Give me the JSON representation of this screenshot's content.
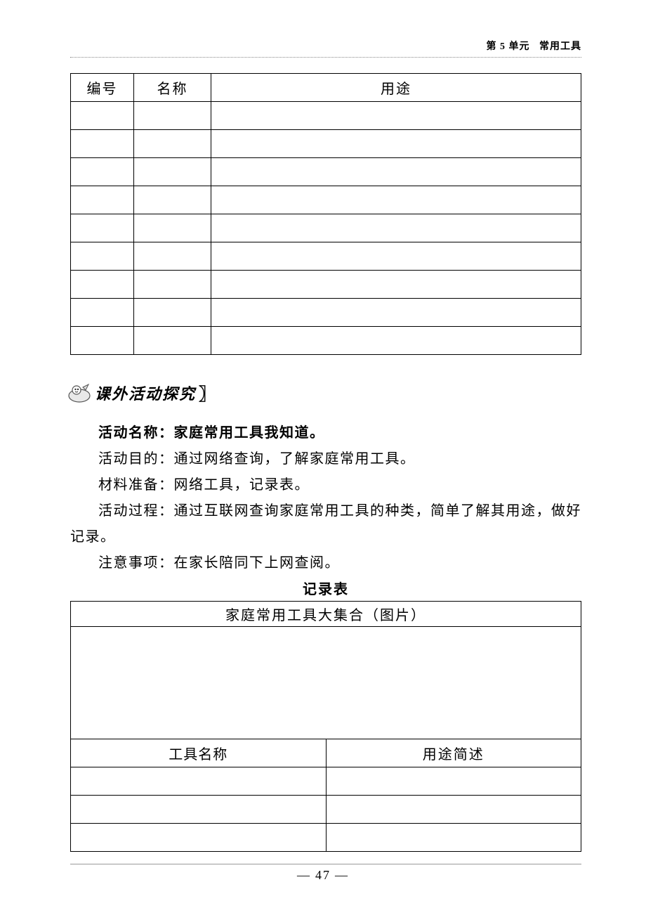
{
  "header": {
    "unit_label": "第 5 单元",
    "unit_title": "常用工具"
  },
  "table1": {
    "columns": [
      "编号",
      "名称",
      "用途"
    ],
    "row_count": 9
  },
  "section": {
    "heading": "课外活动探究",
    "paragraphs": [
      {
        "label": "活动名称",
        "text": "家庭常用工具我知道。",
        "bold_label": true,
        "bold_text": true
      },
      {
        "label": "活动目的",
        "text": "通过网络查询，了解家庭常用工具。",
        "bold_label": false
      },
      {
        "label": "材料准备",
        "text": "网络工具，记录表。",
        "bold_label": false
      },
      {
        "label": "活动过程",
        "text": "通过互联网查询家庭常用工具的种类，简单了解其用途，做好",
        "bold_label": false,
        "continuation": "记录。"
      },
      {
        "label": "注意事项",
        "text": "在家长陪同下上网查阅。",
        "bold_label": false
      }
    ]
  },
  "record_table": {
    "title": "记录表",
    "big_header": "家庭常用工具大集合（图片）",
    "sub_columns": [
      "工具名称",
      "用途简述"
    ],
    "empty_rows": 3
  },
  "footer": {
    "page": "47"
  },
  "colors": {
    "text": "#000000",
    "background": "#ffffff",
    "rule": "#888888"
  }
}
